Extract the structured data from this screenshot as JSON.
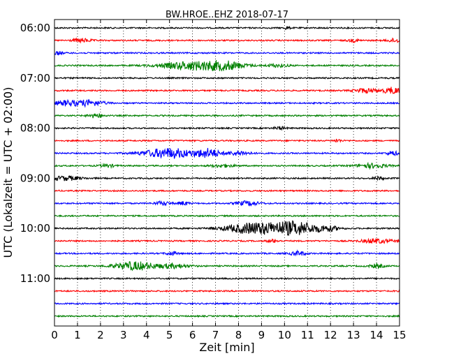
{
  "chart_data": {
    "type": "line",
    "title": "BW.HROE..EHZ 2018-07-17",
    "xlabel": "Zeit  [min]",
    "ylabel": "UTC (Lokalzeit = UTC + 02:00)",
    "xlim": [
      0,
      15
    ],
    "x_ticks": [
      "0",
      "1",
      "2",
      "3",
      "4",
      "5",
      "6",
      "7",
      "8",
      "9",
      "10",
      "11",
      "12",
      "13",
      "14",
      "15"
    ],
    "y_ticks": [
      "06:00",
      "07:00",
      "08:00",
      "09:00",
      "10:00",
      "11:00"
    ],
    "grid": true,
    "grid_axis": "x",
    "colors": [
      "#000000",
      "#ff0000",
      "#0000ff",
      "#008000"
    ],
    "traces": [
      {
        "start": "06:00",
        "color": "#000000",
        "bursts": [
          {
            "t": 10.1,
            "w": 0.15,
            "a": 2
          }
        ]
      },
      {
        "start": "06:15",
        "color": "#ff0000",
        "bursts": [
          {
            "t": 1.2,
            "w": 0.5,
            "a": 2.5
          },
          {
            "t": 13.0,
            "w": 0.3,
            "a": 2
          },
          {
            "t": 14.8,
            "w": 0.4,
            "a": 2.5
          }
        ]
      },
      {
        "start": "06:30",
        "color": "#0000ff",
        "bursts": [
          {
            "t": 0.1,
            "w": 0.3,
            "a": 2.5
          }
        ]
      },
      {
        "start": "06:45",
        "color": "#008000",
        "bursts": [
          {
            "t": 6.0,
            "w": 1.6,
            "a": 6
          },
          {
            "t": 7.5,
            "w": 1.0,
            "a": 5
          },
          {
            "t": 9.7,
            "w": 0.6,
            "a": 2
          }
        ]
      },
      {
        "start": "07:00",
        "color": "#000000",
        "bursts": []
      },
      {
        "start": "07:15",
        "color": "#ff0000",
        "bursts": [
          {
            "t": 13.5,
            "w": 0.6,
            "a": 3
          },
          {
            "t": 14.7,
            "w": 0.5,
            "a": 4.5
          }
        ]
      },
      {
        "start": "07:30",
        "color": "#0000ff",
        "bursts": [
          {
            "t": 0.5,
            "w": 0.6,
            "a": 3.5
          },
          {
            "t": 1.5,
            "w": 0.8,
            "a": 4
          }
        ]
      },
      {
        "start": "07:45",
        "color": "#008000",
        "bursts": [
          {
            "t": 1.8,
            "w": 0.4,
            "a": 3
          }
        ]
      },
      {
        "start": "08:00",
        "color": "#000000",
        "bursts": [
          {
            "t": 9.8,
            "w": 0.3,
            "a": 2
          }
        ]
      },
      {
        "start": "08:15",
        "color": "#ff0000",
        "bursts": [
          {
            "t": 12.3,
            "w": 0.2,
            "a": 2
          }
        ]
      },
      {
        "start": "08:30",
        "color": "#0000ff",
        "bursts": [
          {
            "t": 5.0,
            "w": 1.4,
            "a": 7
          },
          {
            "t": 6.7,
            "w": 0.6,
            "a": 6
          },
          {
            "t": 8.0,
            "w": 0.6,
            "a": 3
          },
          {
            "t": 14.7,
            "w": 0.3,
            "a": 3
          }
        ]
      },
      {
        "start": "08:45",
        "color": "#008000",
        "bursts": [
          {
            "t": 2.3,
            "w": 0.4,
            "a": 2
          },
          {
            "t": 7.3,
            "w": 0.6,
            "a": 2
          },
          {
            "t": 13.8,
            "w": 0.8,
            "a": 3
          }
        ]
      },
      {
        "start": "09:00",
        "color": "#000000",
        "bursts": [
          {
            "t": 0.5,
            "w": 0.8,
            "a": 3
          },
          {
            "t": 14.1,
            "w": 0.3,
            "a": 2
          }
        ]
      },
      {
        "start": "09:15",
        "color": "#ff0000",
        "bursts": []
      },
      {
        "start": "09:30",
        "color": "#0000ff",
        "bursts": [
          {
            "t": 4.7,
            "w": 0.4,
            "a": 2.5
          },
          {
            "t": 5.6,
            "w": 0.3,
            "a": 2.5
          },
          {
            "t": 8.4,
            "w": 0.6,
            "a": 3
          }
        ]
      },
      {
        "start": "09:45",
        "color": "#008000",
        "bursts": []
      },
      {
        "start": "10:00",
        "color": "#000000",
        "bursts": [
          {
            "t": 8.7,
            "w": 1.5,
            "a": 8
          },
          {
            "t": 10.5,
            "w": 1.2,
            "a": 9
          },
          {
            "t": 11.9,
            "w": 0.6,
            "a": 3
          }
        ]
      },
      {
        "start": "10:15",
        "color": "#ff0000",
        "bursts": [
          {
            "t": 9.5,
            "w": 0.3,
            "a": 2
          },
          {
            "t": 14.0,
            "w": 0.8,
            "a": 3
          }
        ]
      },
      {
        "start": "10:30",
        "color": "#0000ff",
        "bursts": [
          {
            "t": 5.1,
            "w": 0.3,
            "a": 2.5
          },
          {
            "t": 10.6,
            "w": 0.4,
            "a": 3
          }
        ]
      },
      {
        "start": "10:45",
        "color": "#008000",
        "bursts": [
          {
            "t": 3.5,
            "w": 1.1,
            "a": 6
          },
          {
            "t": 5.2,
            "w": 0.8,
            "a": 3
          },
          {
            "t": 14.0,
            "w": 0.4,
            "a": 2.5
          }
        ]
      },
      {
        "start": "11:00",
        "color": "#000000",
        "bursts": []
      },
      {
        "start": "11:15",
        "color": "#ff0000",
        "bursts": []
      },
      {
        "start": "11:30",
        "color": "#0000ff",
        "bursts": []
      },
      {
        "start": "11:45",
        "color": "#008000",
        "bursts": []
      }
    ]
  }
}
